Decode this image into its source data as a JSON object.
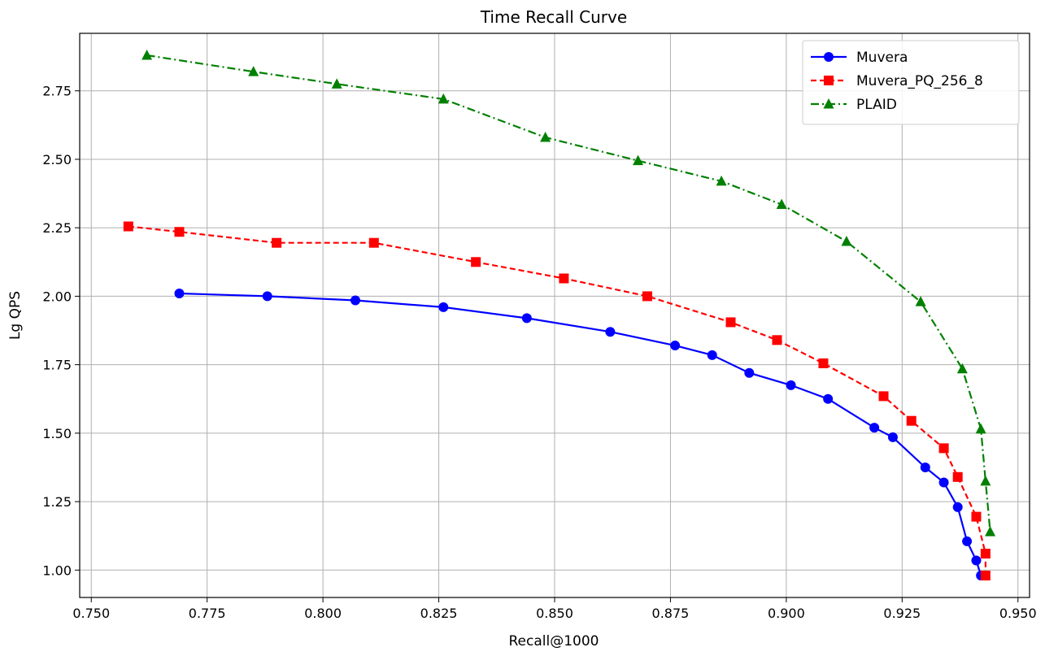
{
  "chart_data": {
    "type": "line",
    "title": "Time Recall Curve",
    "xlabel": "Recall@1000",
    "ylabel": "Lg QPS",
    "xlim": [
      0.7475,
      0.9525
    ],
    "ylim": [
      0.9,
      2.96
    ],
    "xticks": [
      0.75,
      0.775,
      0.8,
      0.825,
      0.85,
      0.875,
      0.9,
      0.925,
      0.95
    ],
    "xtick_labels": [
      "0.750",
      "0.775",
      "0.800",
      "0.825",
      "0.850",
      "0.875",
      "0.900",
      "0.925",
      "0.950"
    ],
    "yticks": [
      1.0,
      1.25,
      1.5,
      1.75,
      2.0,
      2.25,
      2.5,
      2.75
    ],
    "ytick_labels": [
      "1.00",
      "1.25",
      "1.50",
      "1.75",
      "2.00",
      "2.25",
      "2.50",
      "2.75"
    ],
    "grid": true,
    "legend_position": "top-right",
    "series": [
      {
        "name": "Muvera",
        "color": "#0000ff",
        "marker": "circle",
        "linestyle": "solid",
        "x": [
          0.769,
          0.788,
          0.807,
          0.826,
          0.844,
          0.862,
          0.876,
          0.884,
          0.892,
          0.901,
          0.909,
          0.919,
          0.923,
          0.93,
          0.934,
          0.937,
          0.939,
          0.941,
          0.942
        ],
        "y": [
          2.01,
          2.0,
          1.985,
          1.96,
          1.92,
          1.87,
          1.82,
          1.785,
          1.72,
          1.675,
          1.625,
          1.52,
          1.485,
          1.375,
          1.32,
          1.23,
          1.105,
          1.035,
          0.98
        ]
      },
      {
        "name": "Muvera_PQ_256_8",
        "color": "#ff0000",
        "marker": "square",
        "linestyle": "dashed",
        "x": [
          0.758,
          0.769,
          0.79,
          0.811,
          0.833,
          0.852,
          0.87,
          0.888,
          0.898,
          0.908,
          0.921,
          0.927,
          0.934,
          0.937,
          0.941,
          0.943,
          0.943
        ],
        "y": [
          2.255,
          2.235,
          2.195,
          2.195,
          2.125,
          2.065,
          2.0,
          1.905,
          1.84,
          1.755,
          1.635,
          1.545,
          1.445,
          1.34,
          1.195,
          1.06,
          0.98
        ]
      },
      {
        "name": "PLAID",
        "color": "#008000",
        "marker": "triangle",
        "linestyle": "dashdot",
        "x": [
          0.762,
          0.785,
          0.803,
          0.826,
          0.848,
          0.868,
          0.886,
          0.899,
          0.913,
          0.929,
          0.938,
          0.942,
          0.943,
          0.944
        ],
        "y": [
          2.88,
          2.82,
          2.775,
          2.72,
          2.58,
          2.495,
          2.42,
          2.335,
          2.2,
          1.98,
          1.735,
          1.515,
          1.325,
          1.14
        ]
      }
    ]
  }
}
